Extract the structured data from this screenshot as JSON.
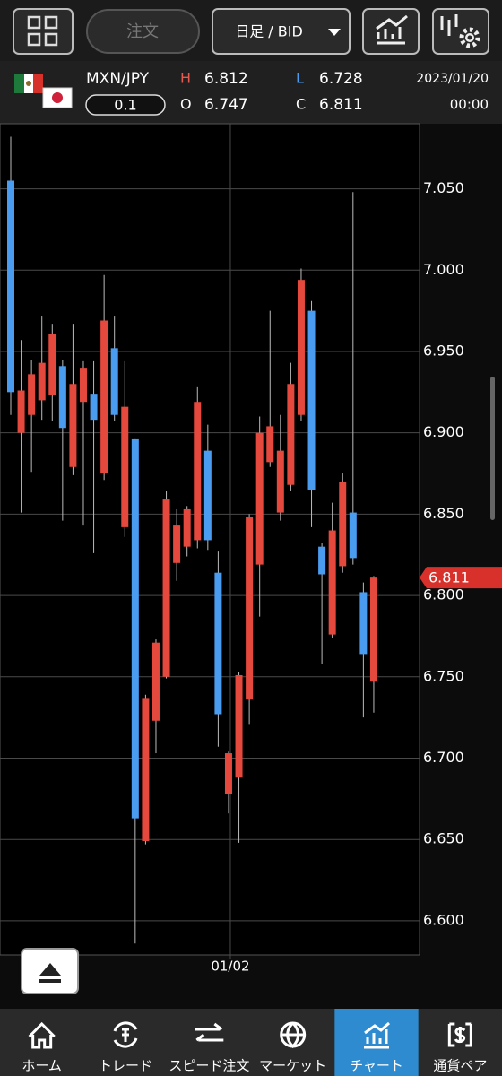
{
  "toolbar": {
    "order": "注文",
    "timeframe": "日足 / BID"
  },
  "quote": {
    "pair": "MXN/JPY",
    "lot": "0.1",
    "high_label": "H",
    "high": "6.812",
    "low_label": "L",
    "low": "6.728",
    "open_label": "O",
    "open": "6.747",
    "close_label": "C",
    "close": "6.811",
    "date": "2023/01/20",
    "time": "00:00"
  },
  "chart_data": {
    "type": "candlestick",
    "categories": [
      null,
      null,
      null,
      null,
      null,
      null,
      null,
      null,
      null,
      null,
      null,
      null,
      null,
      null,
      null,
      null,
      null,
      null,
      null,
      null,
      null,
      "01/02",
      null,
      null,
      null,
      null,
      null,
      null,
      null,
      null,
      null,
      null,
      null,
      null,
      null,
      null
    ],
    "open": [
      7.055,
      6.9,
      6.911,
      6.92,
      6.923,
      6.941,
      6.879,
      6.919,
      6.924,
      6.875,
      6.952,
      6.842,
      6.896,
      6.649,
      6.723,
      6.75,
      6.82,
      6.83,
      6.834,
      6.889,
      6.814,
      6.678,
      6.688,
      6.736,
      6.819,
      6.882,
      6.851,
      6.868,
      6.911,
      6.975,
      6.83,
      6.776,
      6.818,
      6.851,
      6.802,
      6.747
    ],
    "high": [
      7.082,
      6.957,
      6.945,
      6.972,
      6.967,
      6.945,
      6.967,
      6.944,
      6.944,
      6.997,
      6.972,
      6.944,
      6.896,
      6.739,
      6.773,
      6.864,
      6.853,
      6.855,
      6.928,
      6.905,
      6.827,
      6.704,
      6.753,
      6.85,
      6.91,
      6.975,
      6.911,
      6.943,
      7.001,
      6.981,
      6.832,
      6.857,
      6.875,
      7.048,
      6.808,
      6.812
    ],
    "low": [
      6.911,
      6.851,
      6.876,
      6.908,
      6.907,
      6.846,
      6.874,
      6.843,
      6.826,
      6.871,
      6.907,
      6.836,
      6.586,
      6.647,
      6.703,
      6.749,
      6.809,
      6.824,
      6.829,
      6.828,
      6.707,
      6.666,
      6.648,
      6.721,
      6.787,
      6.879,
      6.846,
      6.864,
      6.907,
      6.842,
      6.758,
      6.774,
      6.814,
      6.819,
      6.725,
      6.728
    ],
    "close": [
      6.925,
      6.926,
      6.936,
      6.943,
      6.961,
      6.903,
      6.93,
      6.94,
      6.908,
      6.969,
      6.911,
      6.916,
      6.663,
      6.737,
      6.771,
      6.859,
      6.843,
      6.853,
      6.919,
      6.834,
      6.727,
      6.703,
      6.751,
      6.848,
      6.9,
      6.904,
      6.889,
      6.93,
      6.994,
      6.865,
      6.813,
      6.84,
      6.87,
      6.823,
      6.764,
      6.811
    ],
    "up_color": "#e5483c",
    "down_color": "#4a9cf0",
    "ylim": [
      6.579,
      7.09
    ],
    "yticks": [
      {
        "value": 6.6,
        "label": "6.600"
      },
      {
        "value": 6.65,
        "label": "6.650"
      },
      {
        "value": 6.7,
        "label": "6.700"
      },
      {
        "value": 6.75,
        "label": "6.750"
      },
      {
        "value": 6.8,
        "label": "6.800"
      },
      {
        "value": 6.85,
        "label": "6.850"
      },
      {
        "value": 6.9,
        "label": "6.900"
      },
      {
        "value": 6.95,
        "label": "6.950"
      },
      {
        "value": 7.0,
        "label": "7.000"
      },
      {
        "value": 7.05,
        "label": "7.050"
      }
    ],
    "grid": true
  },
  "nav": {
    "items": [
      "ホーム",
      "トレード",
      "スピード注文",
      "マーケット",
      "チャート",
      "通貨ペア"
    ],
    "active": 4
  }
}
